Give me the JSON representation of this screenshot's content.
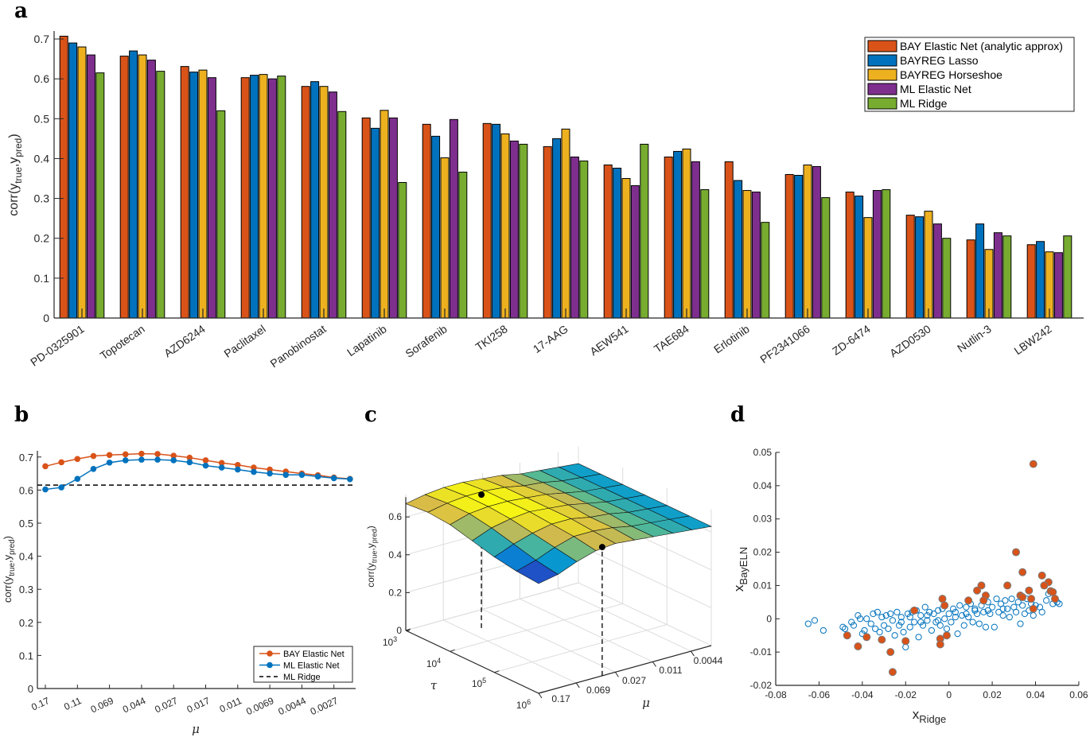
{
  "panel_labels": [
    "a",
    "b",
    "c",
    "d"
  ],
  "chart_data": [
    {
      "panel": "a",
      "type": "bar",
      "ylabel": {
        "prefix": "corr(y",
        "sub1": "true",
        "mid": ",y",
        "sub2": "pred",
        "suffix": ")"
      },
      "ylim": [
        0,
        0.72
      ],
      "y_ticks": [
        "0",
        "0.1",
        "0.2",
        "0.3",
        "0.4",
        "0.5",
        "0.6",
        "0.7"
      ],
      "legend_position": "top-right",
      "categories": [
        "PD-0325901",
        "Topotecan",
        "AZD6244",
        "Paclitaxel",
        "Panobinostat",
        "Lapatinib",
        "Sorafenib",
        "TKI258",
        "17-AAG",
        "AEW541",
        "TAE684",
        "Erlotinib",
        "PF2341066",
        "ZD-6474",
        "AZD0530",
        "Nutlin-3",
        "LBW242"
      ],
      "series": [
        {
          "name": "BAY Elastic Net (analytic approx)",
          "color": "#d95319",
          "values": [
            0.707,
            0.657,
            0.631,
            0.603,
            0.581,
            0.502,
            0.486,
            0.488,
            0.43,
            0.384,
            0.404,
            0.392,
            0.36,
            0.316,
            0.258,
            0.196,
            0.184
          ]
        },
        {
          "name": "BAYREG Lasso",
          "color": "#0072bd",
          "values": [
            0.69,
            0.67,
            0.617,
            0.609,
            0.593,
            0.476,
            0.456,
            0.486,
            0.45,
            0.376,
            0.418,
            0.345,
            0.358,
            0.306,
            0.254,
            0.236,
            0.192
          ]
        },
        {
          "name": "BAYREG Horseshoe",
          "color": "#edb120",
          "values": [
            0.68,
            0.66,
            0.622,
            0.611,
            0.581,
            0.521,
            0.402,
            0.462,
            0.474,
            0.35,
            0.424,
            0.32,
            0.384,
            0.252,
            0.268,
            0.172,
            0.166
          ]
        },
        {
          "name": "ML Elastic Net",
          "color": "#7e2f8e",
          "values": [
            0.66,
            0.647,
            0.603,
            0.6,
            0.567,
            0.502,
            0.498,
            0.444,
            0.404,
            0.332,
            0.392,
            0.316,
            0.38,
            0.32,
            0.236,
            0.214,
            0.164
          ]
        },
        {
          "name": "ML Ridge",
          "color": "#77ac30",
          "values": [
            0.615,
            0.619,
            0.52,
            0.607,
            0.518,
            0.34,
            0.366,
            0.436,
            0.394,
            0.436,
            0.322,
            0.24,
            0.302,
            0.322,
            0.2,
            0.206,
            0.206
          ]
        }
      ]
    },
    {
      "panel": "b",
      "type": "line",
      "xlabel": "μ",
      "ylabel": {
        "prefix": "corr(y",
        "sub1": "true",
        "mid": ",y",
        "sub2": "pred",
        "suffix": ")"
      },
      "ylim": [
        0,
        0.72
      ],
      "x_scale": "log, reversed",
      "y_ticks": [
        "0",
        "0.1",
        "0.2",
        "0.3",
        "0.4",
        "0.5",
        "0.6",
        "0.7"
      ],
      "x_ticks": [
        "0.17",
        "0.11",
        "0.069",
        "0.044",
        "0.027",
        "0.017",
        "0.011",
        "0.0069",
        "0.0044",
        "0.0027"
      ],
      "x": [
        0.17,
        0.135,
        0.107,
        0.085,
        0.068,
        0.054,
        0.043,
        0.034,
        0.027,
        0.0215,
        0.017,
        0.0136,
        0.0108,
        0.0086,
        0.0068,
        0.0054,
        0.0043,
        0.0034,
        0.0027,
        0.0021
      ],
      "legend_position": "bottom-right",
      "series": [
        {
          "name": "BAY Elastic Net",
          "color": "#d95319",
          "values": [
            0.672,
            0.684,
            0.694,
            0.703,
            0.706,
            0.708,
            0.71,
            0.709,
            0.704,
            0.698,
            0.69,
            0.682,
            0.676,
            0.668,
            0.662,
            0.656,
            0.65,
            0.645,
            0.638,
            0.634
          ]
        },
        {
          "name": "ML Elastic Net",
          "color": "#0072bd",
          "values": [
            0.602,
            0.608,
            0.634,
            0.664,
            0.683,
            0.69,
            0.692,
            0.692,
            0.69,
            0.684,
            0.674,
            0.668,
            0.662,
            0.655,
            0.65,
            0.646,
            0.646,
            0.641,
            0.636,
            0.633
          ]
        },
        {
          "name": "ML Ridge",
          "color": "#000000",
          "style": "dashed",
          "constant": 0.615
        }
      ]
    },
    {
      "panel": "c",
      "type": "surface",
      "zlabel": {
        "prefix": "corr(y",
        "sub1": "true",
        "mid": ",y",
        "sub2": "pred",
        "suffix": ")"
      },
      "xlabel": "μ",
      "ylabel": "τ",
      "z_ticks": [
        "0",
        "0.2",
        "0.4",
        "0.6"
      ],
      "mu_ticks": [
        "0.17",
        "0.069",
        "0.027",
        "0.011",
        "0.0044"
      ],
      "tau_ticks": [
        {
          "base": "10",
          "exp": "3"
        },
        {
          "base": "10",
          "exp": "4"
        },
        {
          "base": "10",
          "exp": "5"
        },
        {
          "base": "10",
          "exp": "6"
        }
      ],
      "mu": [
        0.17,
        0.107,
        0.068,
        0.043,
        0.027,
        0.017,
        0.0108,
        0.0068,
        0.0043,
        0.0027
      ],
      "tau": [
        1000,
        3162,
        10000,
        31623,
        100000,
        316228,
        1000000
      ],
      "z": [
        [
          0.67,
          0.69,
          0.7,
          0.7,
          0.69,
          0.68,
          0.66,
          0.65,
          0.64,
          0.63
        ],
        [
          0.68,
          0.7,
          0.71,
          0.71,
          0.7,
          0.68,
          0.67,
          0.65,
          0.64,
          0.63
        ],
        [
          0.67,
          0.7,
          0.71,
          0.71,
          0.7,
          0.69,
          0.67,
          0.65,
          0.64,
          0.63
        ],
        [
          0.64,
          0.68,
          0.7,
          0.71,
          0.7,
          0.69,
          0.67,
          0.65,
          0.64,
          0.63
        ],
        [
          0.61,
          0.65,
          0.68,
          0.7,
          0.7,
          0.68,
          0.67,
          0.65,
          0.64,
          0.63
        ],
        [
          0.59,
          0.62,
          0.66,
          0.69,
          0.69,
          0.68,
          0.66,
          0.65,
          0.64,
          0.63
        ],
        [
          0.58,
          0.6,
          0.64,
          0.67,
          0.68,
          0.67,
          0.66,
          0.65,
          0.64,
          0.63
        ]
      ],
      "colormap": "parula",
      "markers": [
        {
          "tau": 3600,
          "mu": 0.05,
          "z": 0.705
        },
        {
          "tau": 1000000,
          "mu": 0.037,
          "z": 0.68
        }
      ]
    },
    {
      "panel": "d",
      "type": "scatter",
      "xlabel": {
        "main": "x",
        "sub": "Ridge"
      },
      "ylabel": {
        "main": "x",
        "sub": "BayELN"
      },
      "xlim": [
        -0.08,
        0.06
      ],
      "ylim": [
        -0.02,
        0.05
      ],
      "x_ticks": [
        "-0.08",
        "-0.06",
        "-0.04",
        "-0.02",
        "0",
        "0.02",
        "0.04",
        "0.06"
      ],
      "y_ticks": [
        "-0.02",
        "-0.01",
        "0",
        "0.01",
        "0.02",
        "0.03",
        "0.04",
        "0.05"
      ],
      "colors": {
        "open": "#0072bd",
        "filled": "#d95319"
      },
      "open_points": [
        [
          -0.065,
          -0.0015
        ],
        [
          -0.062,
          -0.0005
        ],
        [
          -0.058,
          -0.0035
        ],
        [
          -0.049,
          -0.0025
        ],
        [
          -0.048,
          -0.003
        ],
        [
          -0.045,
          -0.001
        ],
        [
          -0.044,
          -0.002
        ],
        [
          -0.042,
          0.001
        ],
        [
          -0.041,
          0
        ],
        [
          -0.04,
          -0.0045
        ],
        [
          -0.039,
          -0.0035
        ],
        [
          -0.038,
          0
        ],
        [
          -0.036,
          -0.0015
        ],
        [
          -0.035,
          0.0015
        ],
        [
          -0.034,
          -0.003
        ],
        [
          -0.033,
          0.002
        ],
        [
          -0.032,
          -0.004
        ],
        [
          -0.031,
          0.0005
        ],
        [
          -0.03,
          -0.002
        ],
        [
          -0.029,
          0.001
        ],
        [
          -0.028,
          -0.003
        ],
        [
          -0.027,
          0.0015
        ],
        [
          -0.026,
          -0.0005
        ],
        [
          -0.025,
          -0.005
        ],
        [
          -0.024,
          0.002
        ],
        [
          -0.023,
          -0.002
        ],
        [
          -0.022,
          0.0005
        ],
        [
          -0.021,
          -0.004
        ],
        [
          -0.02,
          -0.0085
        ],
        [
          -0.019,
          0.0015
        ],
        [
          -0.018,
          -0.0025
        ],
        [
          -0.017,
          0.002
        ],
        [
          -0.016,
          -0.001
        ],
        [
          -0.015,
          0.0025
        ],
        [
          -0.014,
          -0.0055
        ],
        [
          -0.013,
          0.001
        ],
        [
          -0.012,
          -0.002
        ],
        [
          -0.011,
          0.0035
        ],
        [
          -0.01,
          -0.0005
        ],
        [
          -0.009,
          0.002
        ],
        [
          -0.008,
          -0.0035
        ],
        [
          -0.007,
          0.0015
        ],
        [
          -0.006,
          -0.001
        ],
        [
          -0.005,
          0.0025
        ],
        [
          -0.004,
          -0.002
        ],
        [
          -0.003,
          0.003
        ],
        [
          -0.002,
          0
        ],
        [
          -0.001,
          -0.003
        ],
        [
          0,
          0.0015
        ],
        [
          0.001,
          -0.001
        ],
        [
          0.002,
          0.003
        ],
        [
          0.003,
          0.0005
        ],
        [
          0.004,
          -0.0045
        ],
        [
          0.005,
          0.004
        ],
        [
          0.006,
          0.001
        ],
        [
          0.007,
          -0.002
        ],
        [
          0.008,
          0.0035
        ],
        [
          0.009,
          0.0005
        ],
        [
          0.01,
          0.0045
        ],
        [
          0.011,
          -0.001
        ],
        [
          0.012,
          0.003
        ],
        [
          0.013,
          0.0015
        ],
        [
          0.014,
          -0.0015
        ],
        [
          0.015,
          0.004
        ],
        [
          0.016,
          0.002
        ],
        [
          0.017,
          -0.0025
        ],
        [
          0.018,
          0.005
        ],
        [
          0.019,
          0.0015
        ],
        [
          0.02,
          0.0035
        ],
        [
          0.021,
          -0.0025
        ],
        [
          0.022,
          0.006
        ],
        [
          0.023,
          0.002
        ],
        [
          0.024,
          0.0045
        ],
        [
          0.025,
          0.001
        ],
        [
          0.026,
          0.0055
        ],
        [
          0.027,
          0.003
        ],
        [
          0.028,
          0.0005
        ],
        [
          0.029,
          0.006
        ],
        [
          0.03,
          0.0035
        ],
        [
          0.031,
          0.002
        ],
        [
          0.032,
          0.005
        ],
        [
          0.033,
          -0.0015
        ],
        [
          0.034,
          0.004
        ],
        [
          0.035,
          0.0015
        ],
        [
          0.036,
          0.006
        ],
        [
          0.037,
          0.0025
        ],
        [
          0.038,
          0.0045
        ],
        [
          0.039,
          0.001
        ],
        [
          0.04,
          0.004
        ],
        [
          0.042,
          0.0035
        ],
        [
          0.043,
          0.002
        ],
        [
          0.045,
          0.0055
        ],
        [
          0.046,
          0.0075
        ],
        [
          0.048,
          0.0045
        ],
        [
          0.05,
          0.005
        ],
        [
          0.051,
          0.0045
        ],
        [
          -0.018,
          0.0005
        ],
        [
          -0.01,
          0.001
        ],
        [
          -0.005,
          -0.0005
        ],
        [
          0.003,
          0.002
        ],
        [
          0.008,
          0.0015
        ],
        [
          0.012,
          0.0025
        ],
        [
          -0.013,
          -0.001
        ],
        [
          -0.022,
          -0.001
        ],
        [
          0.018,
          0.0025
        ],
        [
          0.025,
          0.003
        ]
      ],
      "filled_points": [
        [
          0.039,
          0.0465
        ],
        [
          0.031,
          0.02
        ],
        [
          0.034,
          0.014
        ],
        [
          0.043,
          0.013
        ],
        [
          0.046,
          0.011
        ],
        [
          0.044,
          0.01
        ],
        [
          0.027,
          0.01
        ],
        [
          0.015,
          0.01
        ],
        [
          0.013,
          0.0085
        ],
        [
          0.017,
          0.007
        ],
        [
          0.037,
          0.0085
        ],
        [
          0.047,
          0.0083
        ],
        [
          0.048,
          0.008
        ],
        [
          0.049,
          0.006
        ],
        [
          0.038,
          0.006
        ],
        [
          0.033,
          0.007
        ],
        [
          0.034,
          0.0065
        ],
        [
          0.009,
          0.0055
        ],
        [
          0.016,
          0.0055
        ],
        [
          -0.003,
          0.006
        ],
        [
          -0.002,
          0.004
        ],
        [
          0.039,
          0.003
        ],
        [
          -0.047,
          -0.005
        ],
        [
          -0.042,
          -0.0083
        ],
        [
          -0.038,
          -0.0055
        ],
        [
          -0.031,
          -0.0063
        ],
        [
          -0.027,
          -0.01
        ],
        [
          -0.026,
          -0.016
        ],
        [
          -0.02,
          -0.0067
        ],
        [
          -0.004,
          -0.006
        ],
        [
          -0.004,
          -0.0077
        ],
        [
          -0.001,
          -0.005
        ],
        [
          -0.016,
          0.0025
        ]
      ]
    }
  ]
}
